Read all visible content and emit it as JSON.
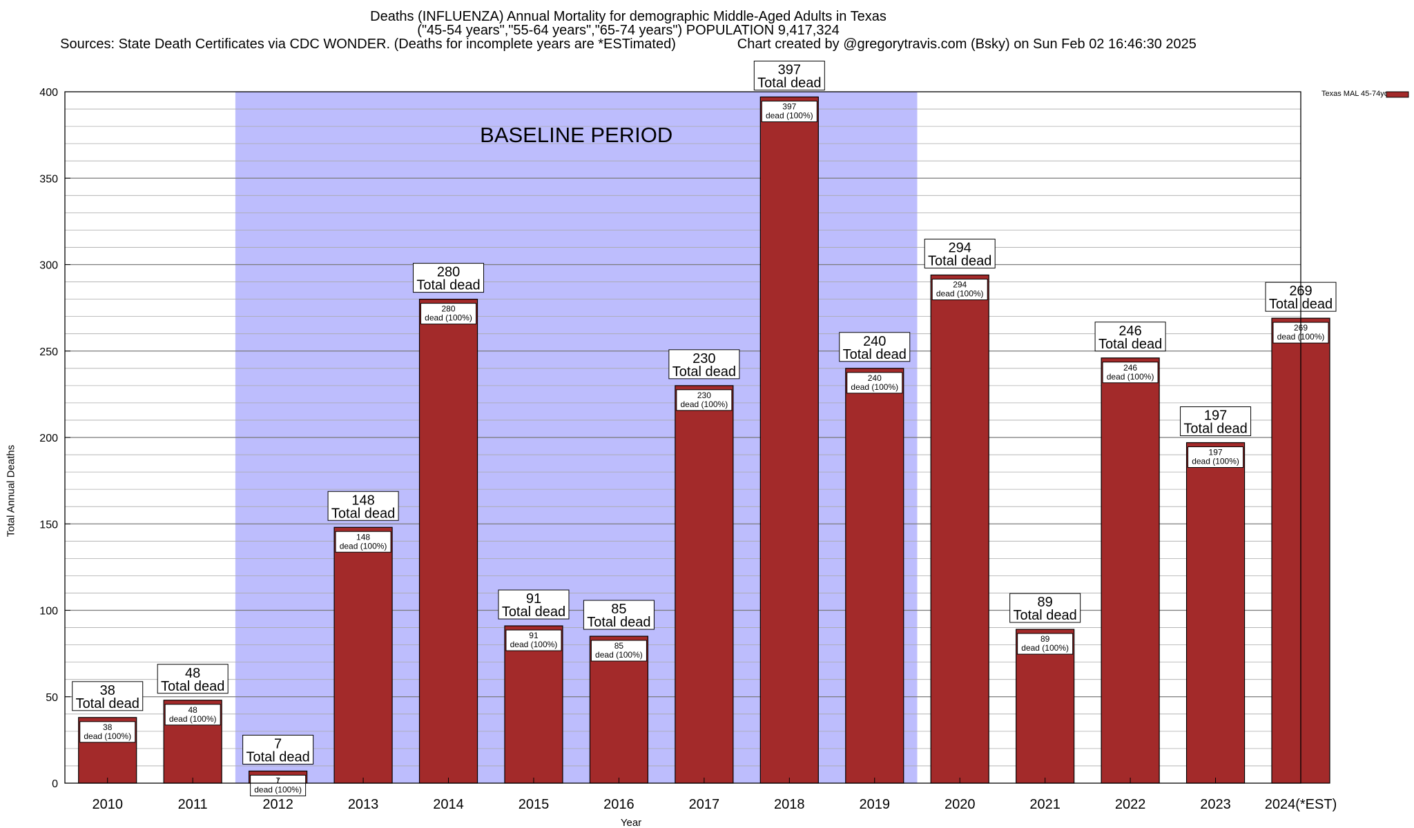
{
  "title": {
    "line1": "Deaths (INFLUENZA) Annual Mortality for demographic Middle-Aged Adults in Texas",
    "line2": "(\"45-54 years\",\"55-64 years\",\"65-74 years\") POPULATION 9,417,324",
    "line3": "Sources: State Death Certificates via CDC WONDER. (Deaths for incomplete years are *ESTimated)                Chart created by @gregorytravis.com (Bsky) on Sun Feb 02 16:46:30 2025"
  },
  "chart_data": {
    "type": "bar",
    "categories": [
      "2010",
      "2011",
      "2012",
      "2013",
      "2014",
      "2015",
      "2016",
      "2017",
      "2018",
      "2019",
      "2020",
      "2021",
      "2022",
      "2023",
      "2024(*EST)"
    ],
    "series": [
      {
        "name": "Texas MAL 45-74yo",
        "values": [
          38,
          48,
          7,
          148,
          280,
          91,
          85,
          230,
          397,
          240,
          294,
          89,
          246,
          197,
          269
        ],
        "color": "#a32a2a"
      }
    ],
    "xlabel": "Year",
    "ylabel": "Total Annual Deaths",
    "ylim": [
      0,
      400
    ],
    "yticks": [
      0,
      50,
      100,
      150,
      200,
      250,
      300,
      350,
      400
    ],
    "minor_gridline_step": 10,
    "grid": true,
    "legend_position": "top-right",
    "annotation_label": "Total dead",
    "inner_label": "dead (100%)",
    "baseline_period": {
      "label": "BASELINE PERIOD",
      "from": "2012",
      "to": "2019",
      "color": "#bdbdfd"
    }
  }
}
